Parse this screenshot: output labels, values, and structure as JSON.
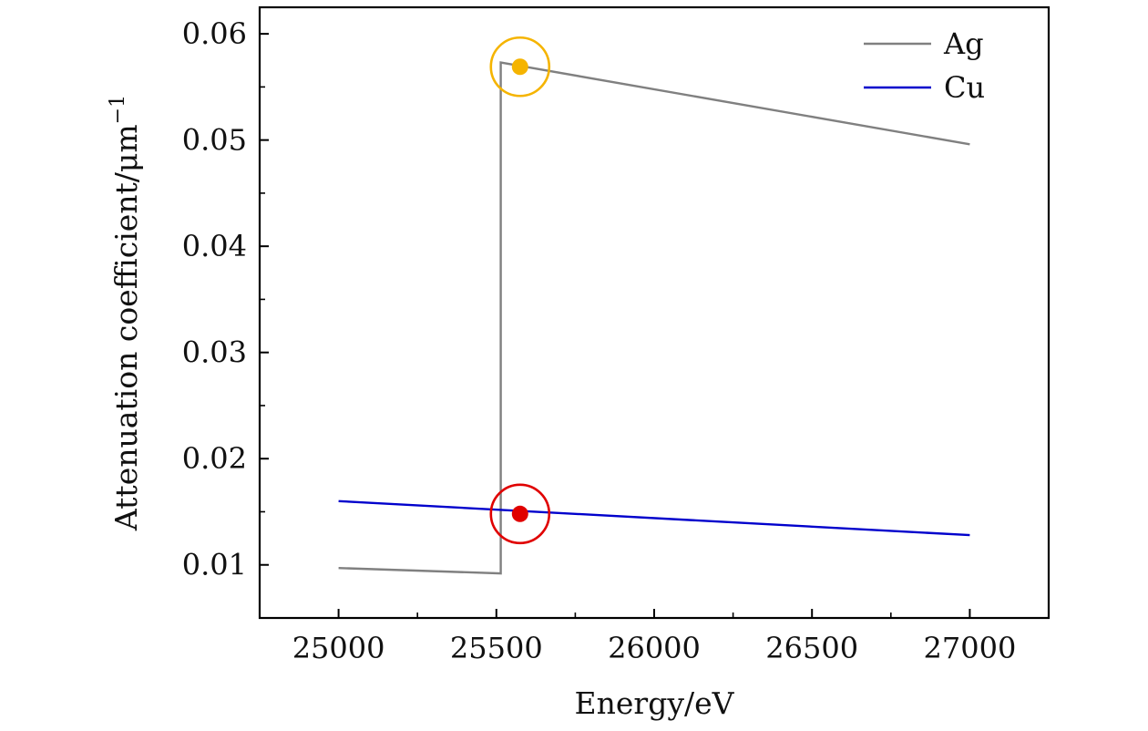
{
  "chart_data": {
    "type": "line",
    "xlabel": "Energy/eV",
    "ylabel": "Attenuation coefficient/μm",
    "ylabel_superscript": "−1",
    "xlim": [
      24750,
      27250
    ],
    "ylim": [
      0.005,
      0.0625
    ],
    "x_ticks": [
      {
        "value": 25000,
        "label": "25000"
      },
      {
        "value": 25500,
        "label": "25500"
      },
      {
        "value": 26000,
        "label": "26000"
      },
      {
        "value": 26500,
        "label": "26500"
      },
      {
        "value": 27000,
        "label": "27000"
      }
    ],
    "y_ticks": [
      {
        "value": 0.01,
        "label": "0.01"
      },
      {
        "value": 0.02,
        "label": "0.02"
      },
      {
        "value": 0.03,
        "label": "0.03"
      },
      {
        "value": 0.04,
        "label": "0.04"
      },
      {
        "value": 0.05,
        "label": "0.05"
      },
      {
        "value": 0.06,
        "label": "0.06"
      }
    ],
    "x_minor_step": 250,
    "y_minor_step": 0.005,
    "grid": false,
    "legend_position": "top-right",
    "series": [
      {
        "name": "Ag",
        "color": "#808080",
        "points": [
          [
            25000,
            0.0097
          ],
          [
            25514,
            0.0092
          ],
          [
            25514,
            0.0573
          ],
          [
            27000,
            0.0496
          ]
        ]
      },
      {
        "name": "Cu",
        "color": "#0000cc",
        "points": [
          [
            25000,
            0.016
          ],
          [
            27000,
            0.0128
          ]
        ]
      }
    ],
    "markers": [
      {
        "series": "Ag",
        "x": 25575,
        "y": 0.0569,
        "color": "#f5b400"
      },
      {
        "series": "Cu",
        "x": 25575,
        "y": 0.0148,
        "color": "#e00000"
      }
    ]
  }
}
